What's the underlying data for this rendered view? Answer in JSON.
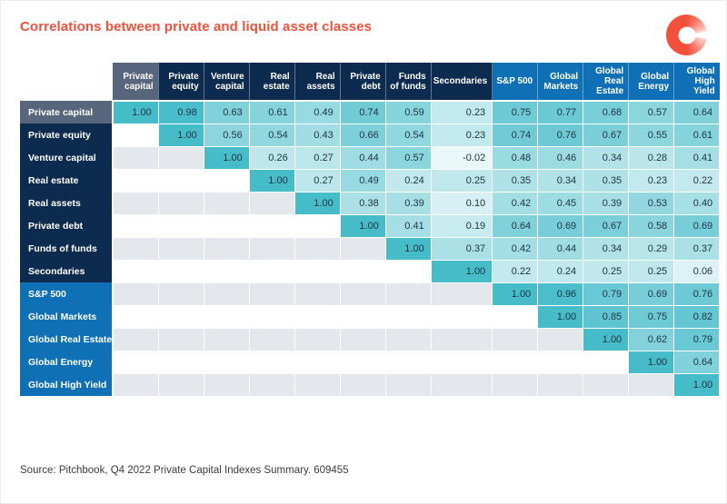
{
  "title": "Correlations between private and liquid asset classes",
  "source": "Source: Pitchbook, Q4 2022 Private Capital Indexes Summary. 609455",
  "logo_icon": "donut-brand-mark",
  "colors": {
    "title_red": "#f4513c",
    "private_header_navy": "#0d2b4e",
    "liquid_header_blue": "#0f70b5",
    "highlight_slate": "#57657d",
    "heat_min": "#eaf7f9",
    "heat_max": "#46bcc9",
    "empty_stripe_grey": "#e4e8ec",
    "cell_text": "#1e3340"
  },
  "chart_data": {
    "type": "heatmap",
    "title": "Correlations between private and liquid asset classes",
    "categories": [
      "Private capital",
      "Private equity",
      "Venture capital",
      "Real estate",
      "Real assets",
      "Private debt",
      "Funds of funds",
      "Secondaries",
      "S&P 500",
      "Global Markets",
      "Global Real Estate",
      "Global Energy",
      "Global High Yield"
    ],
    "private_group": [
      "Private capital",
      "Private equity",
      "Venture capital",
      "Real estate",
      "Real assets",
      "Private debt",
      "Funds of funds",
      "Secondaries"
    ],
    "liquid_group": [
      "S&P 500",
      "Global Markets",
      "Global Real Estate",
      "Global Energy",
      "Global High Yield"
    ],
    "highlighted_category": "Private capital",
    "value_range": [
      -0.02,
      1.0
    ],
    "matrix": [
      [
        1.0,
        0.98,
        0.63,
        0.61,
        0.49,
        0.74,
        0.59,
        0.23,
        0.75,
        0.77,
        0.68,
        0.57,
        0.64
      ],
      [
        null,
        1.0,
        0.56,
        0.54,
        0.43,
        0.66,
        0.54,
        0.23,
        0.74,
        0.76,
        0.67,
        0.55,
        0.61
      ],
      [
        null,
        null,
        1.0,
        0.26,
        0.27,
        0.44,
        0.57,
        -0.02,
        0.48,
        0.46,
        0.34,
        0.28,
        0.41
      ],
      [
        null,
        null,
        null,
        1.0,
        0.27,
        0.49,
        0.24,
        0.25,
        0.35,
        0.34,
        0.35,
        0.23,
        0.22
      ],
      [
        null,
        null,
        null,
        null,
        1.0,
        0.38,
        0.39,
        0.1,
        0.42,
        0.45,
        0.39,
        0.53,
        0.4
      ],
      [
        null,
        null,
        null,
        null,
        null,
        1.0,
        0.41,
        0.19,
        0.64,
        0.69,
        0.67,
        0.58,
        0.69
      ],
      [
        null,
        null,
        null,
        null,
        null,
        null,
        1.0,
        0.37,
        0.42,
        0.44,
        0.34,
        0.29,
        0.37
      ],
      [
        null,
        null,
        null,
        null,
        null,
        null,
        null,
        1.0,
        0.22,
        0.24,
        0.25,
        0.25,
        0.06
      ],
      [
        null,
        null,
        null,
        null,
        null,
        null,
        null,
        null,
        1.0,
        0.96,
        0.79,
        0.69,
        0.76
      ],
      [
        null,
        null,
        null,
        null,
        null,
        null,
        null,
        null,
        null,
        1.0,
        0.85,
        0.75,
        0.82
      ],
      [
        null,
        null,
        null,
        null,
        null,
        null,
        null,
        null,
        null,
        null,
        1.0,
        0.62,
        0.79
      ],
      [
        null,
        null,
        null,
        null,
        null,
        null,
        null,
        null,
        null,
        null,
        null,
        1.0,
        0.64
      ],
      [
        null,
        null,
        null,
        null,
        null,
        null,
        null,
        null,
        null,
        null,
        null,
        null,
        1.0
      ]
    ],
    "source": "Source: Pitchbook, Q4 2022 Private Capital Indexes Summary. 609455"
  }
}
